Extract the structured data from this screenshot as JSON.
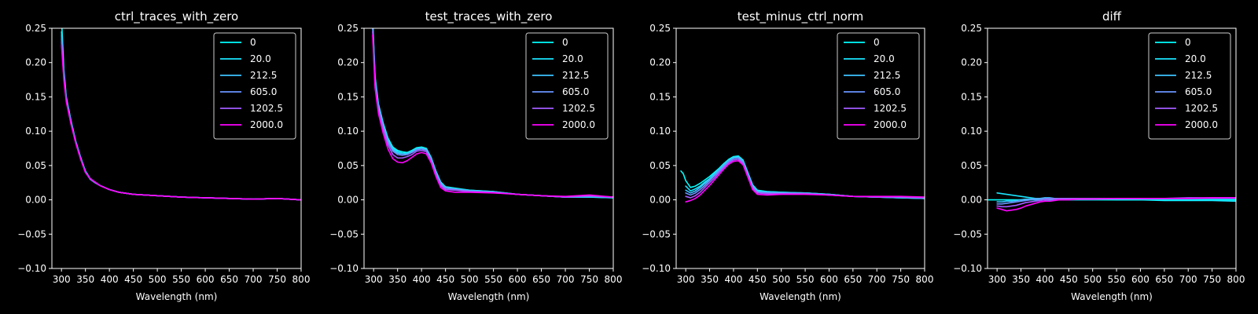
{
  "figure": {
    "background": "#000000",
    "foreground": "#ffffff"
  },
  "chart_data": [
    {
      "type": "line",
      "title": "ctrl_traces_with_zero",
      "xlabel": "Wavelength (nm)",
      "ylabel": "",
      "xlim": [
        280,
        800
      ],
      "ylim": [
        -0.1,
        0.25
      ],
      "xticks": [
        300,
        350,
        400,
        450,
        500,
        550,
        600,
        650,
        700,
        750,
        800
      ],
      "yticks": [
        -0.1,
        -0.05,
        0.0,
        0.05,
        0.1,
        0.15,
        0.2,
        0.25
      ],
      "ytick_labels": [
        "−0.10",
        "−0.05",
        "0.00",
        "0.05",
        "0.10",
        "0.15",
        "0.20",
        "0.25"
      ],
      "grid": false,
      "legend_position": "top-right",
      "x": [
        300,
        305,
        310,
        320,
        330,
        340,
        350,
        360,
        370,
        380,
        400,
        420,
        450,
        500,
        550,
        600,
        650,
        700,
        750,
        800
      ],
      "series": [
        {
          "name": "0",
          "color": "#00ffff",
          "values": [
            0.265,
            0.19,
            0.15,
            0.115,
            0.085,
            0.062,
            0.042,
            0.031,
            0.025,
            0.021,
            0.015,
            0.011,
            0.008,
            0.006,
            0.004,
            0.003,
            0.002,
            0.001,
            0.002,
            0.0
          ]
        },
        {
          "name": "20.0",
          "color": "#1ae5ff",
          "values": [
            0.245,
            0.185,
            0.148,
            0.114,
            0.084,
            0.061,
            0.041,
            0.03,
            0.025,
            0.021,
            0.015,
            0.011,
            0.008,
            0.006,
            0.004,
            0.003,
            0.002,
            0.001,
            0.002,
            0.0
          ]
        },
        {
          "name": "212.5",
          "color": "#3dc2ff",
          "values": [
            0.24,
            0.183,
            0.147,
            0.113,
            0.084,
            0.061,
            0.041,
            0.03,
            0.025,
            0.021,
            0.015,
            0.011,
            0.008,
            0.006,
            0.004,
            0.003,
            0.002,
            0.001,
            0.002,
            0.0
          ]
        },
        {
          "name": "605.0",
          "color": "#6a95ff",
          "values": [
            0.235,
            0.18,
            0.146,
            0.112,
            0.083,
            0.06,
            0.04,
            0.03,
            0.025,
            0.021,
            0.015,
            0.011,
            0.008,
            0.006,
            0.004,
            0.003,
            0.002,
            0.001,
            0.002,
            0.0
          ]
        },
        {
          "name": "1202.5",
          "color": "#a35cff",
          "values": [
            0.23,
            0.178,
            0.145,
            0.111,
            0.083,
            0.06,
            0.04,
            0.031,
            0.026,
            0.021,
            0.015,
            0.011,
            0.008,
            0.006,
            0.004,
            0.003,
            0.002,
            0.001,
            0.002,
            0.0
          ]
        },
        {
          "name": "2000.0",
          "color": "#ff00ff",
          "values": [
            0.225,
            0.175,
            0.143,
            0.11,
            0.082,
            0.059,
            0.04,
            0.031,
            0.026,
            0.021,
            0.015,
            0.011,
            0.008,
            0.006,
            0.004,
            0.003,
            0.002,
            0.001,
            0.002,
            0.0
          ]
        }
      ]
    },
    {
      "type": "line",
      "title": "test_traces_with_zero",
      "xlabel": "Wavelength (nm)",
      "ylabel": "",
      "xlim": [
        280,
        800
      ],
      "ylim": [
        -0.1,
        0.25
      ],
      "xticks": [
        300,
        350,
        400,
        450,
        500,
        550,
        600,
        650,
        700,
        750,
        800
      ],
      "yticks": [
        -0.1,
        -0.05,
        0.0,
        0.05,
        0.1,
        0.15,
        0.2,
        0.25
      ],
      "ytick_labels": [
        "−0.10",
        "−0.05",
        "0.00",
        "0.05",
        "0.10",
        "0.15",
        "0.20",
        "0.25"
      ],
      "grid": false,
      "legend_position": "top-right",
      "x": [
        298,
        303,
        310,
        320,
        330,
        340,
        350,
        360,
        370,
        380,
        390,
        400,
        410,
        420,
        430,
        440,
        450,
        470,
        500,
        550,
        600,
        650,
        700,
        750,
        800
      ],
      "series": [
        {
          "name": "0",
          "color": "#00ffff",
          "values": [
            0.265,
            0.18,
            0.14,
            0.112,
            0.09,
            0.077,
            0.072,
            0.07,
            0.069,
            0.072,
            0.076,
            0.077,
            0.075,
            0.062,
            0.042,
            0.026,
            0.019,
            0.017,
            0.014,
            0.012,
            0.008,
            0.006,
            0.004,
            0.004,
            0.003
          ]
        },
        {
          "name": "20.0",
          "color": "#1ae5ff",
          "values": [
            0.26,
            0.177,
            0.138,
            0.11,
            0.088,
            0.075,
            0.07,
            0.068,
            0.068,
            0.071,
            0.075,
            0.076,
            0.074,
            0.061,
            0.041,
            0.025,
            0.018,
            0.016,
            0.014,
            0.012,
            0.008,
            0.006,
            0.004,
            0.004,
            0.003
          ]
        },
        {
          "name": "212.5",
          "color": "#3dc2ff",
          "values": [
            0.255,
            0.175,
            0.136,
            0.108,
            0.086,
            0.073,
            0.068,
            0.067,
            0.067,
            0.07,
            0.074,
            0.075,
            0.073,
            0.06,
            0.04,
            0.024,
            0.018,
            0.016,
            0.013,
            0.011,
            0.008,
            0.006,
            0.004,
            0.005,
            0.003
          ]
        },
        {
          "name": "605.0",
          "color": "#6a95ff",
          "values": [
            0.25,
            0.172,
            0.134,
            0.106,
            0.084,
            0.071,
            0.066,
            0.065,
            0.066,
            0.069,
            0.073,
            0.074,
            0.072,
            0.059,
            0.039,
            0.023,
            0.017,
            0.015,
            0.013,
            0.011,
            0.008,
            0.006,
            0.004,
            0.005,
            0.004
          ]
        },
        {
          "name": "1202.5",
          "color": "#a35cff",
          "values": [
            0.245,
            0.168,
            0.131,
            0.103,
            0.08,
            0.066,
            0.061,
            0.061,
            0.063,
            0.066,
            0.071,
            0.072,
            0.07,
            0.057,
            0.037,
            0.021,
            0.015,
            0.014,
            0.012,
            0.011,
            0.008,
            0.006,
            0.004,
            0.006,
            0.004
          ]
        },
        {
          "name": "2000.0",
          "color": "#ff00ff",
          "values": [
            0.24,
            0.163,
            0.126,
            0.097,
            0.074,
            0.06,
            0.055,
            0.054,
            0.057,
            0.062,
            0.067,
            0.069,
            0.067,
            0.054,
            0.034,
            0.018,
            0.013,
            0.011,
            0.011,
            0.01,
            0.008,
            0.006,
            0.005,
            0.007,
            0.004
          ]
        }
      ]
    },
    {
      "type": "line",
      "title": "test_minus_ctrl_norm",
      "xlabel": "Wavelength (nm)",
      "ylabel": "",
      "xlim": [
        280,
        800
      ],
      "ylim": [
        -0.1,
        0.25
      ],
      "xticks": [
        300,
        350,
        400,
        450,
        500,
        550,
        600,
        650,
        700,
        750,
        800
      ],
      "yticks": [
        -0.1,
        -0.05,
        0.0,
        0.05,
        0.1,
        0.15,
        0.2,
        0.25
      ],
      "ytick_labels": [
        "−0.10",
        "−0.05",
        "0.00",
        "0.05",
        "0.10",
        "0.15",
        "0.20",
        "0.25"
      ],
      "grid": false,
      "legend_position": "top-right",
      "x": [
        290,
        295,
        300,
        310,
        320,
        330,
        340,
        350,
        360,
        370,
        380,
        390,
        400,
        410,
        420,
        430,
        440,
        450,
        470,
        500,
        550,
        600,
        650,
        700,
        750,
        800
      ],
      "series": [
        {
          "name": "0",
          "color": "#00ffff",
          "values": [
            0.042,
            0.038,
            0.028,
            0.018,
            0.02,
            0.024,
            0.029,
            0.034,
            0.04,
            0.046,
            0.053,
            0.059,
            0.063,
            0.064,
            0.058,
            0.04,
            0.022,
            0.014,
            0.012,
            0.011,
            0.01,
            0.008,
            0.005,
            0.004,
            0.003,
            0.002
          ]
        },
        {
          "name": "20.0",
          "color": "#1ae5ff",
          "values": [
            null,
            null,
            0.02,
            0.013,
            0.016,
            0.02,
            0.026,
            0.031,
            0.038,
            0.045,
            0.052,
            0.058,
            0.062,
            0.063,
            0.057,
            0.039,
            0.021,
            0.013,
            0.012,
            0.011,
            0.01,
            0.008,
            0.005,
            0.004,
            0.003,
            0.002
          ]
        },
        {
          "name": "212.5",
          "color": "#3dc2ff",
          "values": [
            null,
            null,
            0.014,
            0.01,
            0.013,
            0.018,
            0.024,
            0.03,
            0.037,
            0.044,
            0.051,
            0.057,
            0.061,
            0.062,
            0.056,
            0.038,
            0.02,
            0.012,
            0.011,
            0.01,
            0.01,
            0.008,
            0.005,
            0.004,
            0.003,
            0.002
          ]
        },
        {
          "name": "605.0",
          "color": "#6a95ff",
          "values": [
            null,
            null,
            0.01,
            0.007,
            0.01,
            0.015,
            0.021,
            0.028,
            0.035,
            0.042,
            0.049,
            0.056,
            0.06,
            0.061,
            0.055,
            0.037,
            0.019,
            0.011,
            0.01,
            0.01,
            0.009,
            0.007,
            0.005,
            0.004,
            0.004,
            0.003
          ]
        },
        {
          "name": "1202.5",
          "color": "#a35cff",
          "values": [
            null,
            null,
            0.005,
            0.003,
            0.006,
            0.011,
            0.018,
            0.025,
            0.032,
            0.04,
            0.047,
            0.054,
            0.058,
            0.059,
            0.053,
            0.035,
            0.017,
            0.01,
            0.009,
            0.009,
            0.009,
            0.007,
            0.005,
            0.004,
            0.004,
            0.003
          ]
        },
        {
          "name": "2000.0",
          "color": "#ff00ff",
          "values": [
            null,
            null,
            -0.003,
            -0.001,
            0.002,
            0.007,
            0.014,
            0.021,
            0.029,
            0.037,
            0.045,
            0.052,
            0.056,
            0.057,
            0.051,
            0.033,
            0.015,
            0.008,
            0.007,
            0.008,
            0.008,
            0.007,
            0.005,
            0.005,
            0.005,
            0.004
          ]
        }
      ]
    },
    {
      "type": "line",
      "title": "diff",
      "xlabel": "Wavelength (nm)",
      "ylabel": "",
      "xlim": [
        280,
        800
      ],
      "ylim": [
        -0.1,
        0.25
      ],
      "xticks": [
        300,
        350,
        400,
        450,
        500,
        550,
        600,
        650,
        700,
        750,
        800
      ],
      "yticks": [
        -0.1,
        -0.05,
        0.0,
        0.05,
        0.1,
        0.15,
        0.2,
        0.25
      ],
      "ytick_labels": [
        "−0.10",
        "−0.05",
        "0.00",
        "0.05",
        "0.10",
        "0.15",
        "0.20",
        "0.25"
      ],
      "grid": false,
      "legend_position": "top-right",
      "x": [
        282,
        290,
        300,
        310,
        320,
        330,
        340,
        350,
        360,
        370,
        380,
        390,
        400,
        410,
        420,
        430,
        450,
        470,
        500,
        550,
        600,
        650,
        700,
        750,
        800
      ],
      "series": [
        {
          "name": "0",
          "color": "#00ffff",
          "values": [
            0.0,
            0.0,
            0.0,
            0.0,
            0.0,
            0.0,
            0.0,
            0.0,
            0.0,
            0.0,
            0.0,
            0.0,
            0.0,
            0.0,
            0.0,
            0.0,
            0.0,
            0.0,
            0.0,
            0.0,
            0.0,
            0.0,
            0.0,
            0.0,
            0.0
          ]
        },
        {
          "name": "20.0",
          "color": "#1ae5ff",
          "values": [
            null,
            null,
            0.01,
            0.009,
            0.008,
            0.007,
            0.006,
            0.005,
            0.004,
            0.003,
            0.002,
            0.002,
            0.002,
            0.002,
            0.002,
            0.001,
            0.001,
            0.001,
            0.001,
            0.0,
            0.0,
            -0.001,
            -0.001,
            -0.001,
            -0.002
          ]
        },
        {
          "name": "212.5",
          "color": "#3dc2ff",
          "values": [
            null,
            null,
            -0.003,
            -0.003,
            -0.002,
            -0.002,
            -0.001,
            0.0,
            0.001,
            0.001,
            0.002,
            0.002,
            0.003,
            0.003,
            0.002,
            0.002,
            0.002,
            0.002,
            0.002,
            0.002,
            0.002,
            0.002,
            0.002,
            0.002,
            0.002
          ]
        },
        {
          "name": "605.0",
          "color": "#6a95ff",
          "values": [
            null,
            null,
            -0.006,
            -0.006,
            -0.005,
            -0.004,
            -0.003,
            -0.002,
            -0.001,
            0.0,
            0.001,
            0.001,
            0.002,
            0.002,
            0.002,
            0.002,
            0.002,
            0.002,
            0.002,
            0.002,
            0.002,
            0.002,
            0.002,
            0.002,
            0.002
          ]
        },
        {
          "name": "1202.5",
          "color": "#a35cff",
          "values": [
            null,
            null,
            -0.009,
            -0.01,
            -0.01,
            -0.009,
            -0.008,
            -0.006,
            -0.004,
            -0.003,
            -0.002,
            -0.001,
            0.0,
            0.001,
            0.001,
            0.002,
            0.002,
            0.002,
            0.002,
            0.002,
            0.002,
            0.002,
            0.003,
            0.003,
            0.003
          ]
        },
        {
          "name": "2000.0",
          "color": "#ff00ff",
          "values": [
            null,
            null,
            -0.012,
            -0.014,
            -0.016,
            -0.015,
            -0.014,
            -0.012,
            -0.009,
            -0.007,
            -0.005,
            -0.003,
            -0.002,
            -0.002,
            -0.001,
            0.0,
            0.0,
            0.001,
            0.001,
            0.002,
            0.002,
            0.002,
            0.002,
            0.003,
            0.003
          ]
        }
      ]
    }
  ]
}
